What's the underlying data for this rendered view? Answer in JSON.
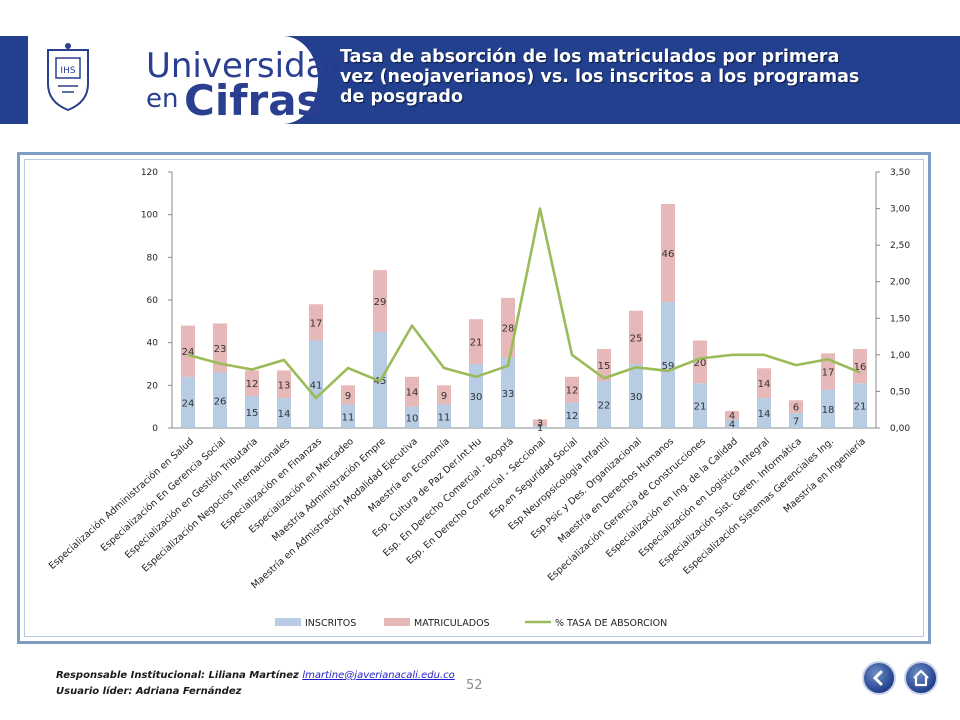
{
  "header": {
    "brand_line1": "Universidad",
    "brand_line2a": "en",
    "brand_line2b": "Cifras",
    "title": "Tasa de absorción de los matriculados por primera vez (neojaverianos) vs. los inscritos a los programas de posgrado",
    "logo_icon": "seal-icon"
  },
  "chart_data": {
    "type": "bar",
    "stacked": true,
    "categories": [
      "Especialización Administración en Salud",
      "Especialización En  Gerencia Social",
      "Especialización en Gestión Tributaria",
      "Especialización Negocios Internacionales",
      "Especialización en Finanzas",
      "Especialización en Mercadeo",
      "Maestría  Administración Empre",
      "Maestría en Admistración Modalidad Ejecutiva",
      "Maestría en Economía",
      "Esp. Cultura de Paz Der.Int.Hu",
      "Esp. En Derecho Comercial - Bogotá",
      "Esp. En Derecho Comercial - Seccional",
      "Esp.en Seguridad Social",
      "Esp.Neuropsicologia Infantil",
      "Esp.Psic y Des. Organizacional",
      "Maestría en Derechos Humanos",
      "Especialización Gerencia de Construcciones",
      "Especialización en Ing. de la Calidad",
      "Especialización en Logistica Integral",
      "Especialización Sist. Geren. Informática",
      "Especialización Sistemas Gerenciales Ing.",
      "Maestría en Ingeniería"
    ],
    "series": [
      {
        "name": "INSCRITOS",
        "color": "#b8cce4",
        "values": [
          24,
          26,
          15,
          14,
          41,
          11,
          45,
          10,
          11,
          30,
          33,
          1,
          12,
          22,
          30,
          59,
          21,
          4,
          14,
          7,
          18,
          21
        ]
      },
      {
        "name": "MATRICULADOS",
        "color": "#e6b9b8",
        "values": [
          24,
          23,
          12,
          13,
          17,
          9,
          29,
          14,
          9,
          21,
          28,
          3,
          12,
          15,
          25,
          46,
          20,
          4,
          14,
          6,
          17,
          16
        ]
      },
      {
        "name": "% TASA DE ABSORCION",
        "color": "#9bbb59",
        "type": "line",
        "axis": "right",
        "values": [
          1.0,
          0.88,
          0.8,
          0.93,
          0.41,
          0.82,
          0.64,
          1.4,
          0.82,
          0.7,
          0.85,
          3.0,
          1.0,
          0.68,
          0.83,
          0.78,
          0.95,
          1.0,
          1.0,
          0.86,
          0.94,
          0.76
        ]
      }
    ],
    "y_ticks": [
      "0",
      "20",
      "40",
      "60",
      "80",
      "100",
      "120"
    ],
    "y2_ticks": [
      "0,00",
      "0,50",
      "1,00",
      "1,50",
      "2,00",
      "2,50",
      "3,00",
      "3,50"
    ],
    "ylim": [
      0,
      120
    ],
    "y2lim": [
      0,
      3.5
    ],
    "legend": {
      "position": "bottom",
      "items": [
        "INSCRITOS",
        "MATRICULADOS",
        "% TASA DE ABSORCION"
      ]
    }
  },
  "footer": {
    "resp_label": "Responsable Institucional: Liliana Martínez",
    "resp_email": "lmartine@javerianacali.edu.co",
    "user_label": "Usuario líder: Adriana Fernández",
    "page": "52",
    "back_icon": "arrow-left-icon",
    "home_icon": "home-icon"
  }
}
